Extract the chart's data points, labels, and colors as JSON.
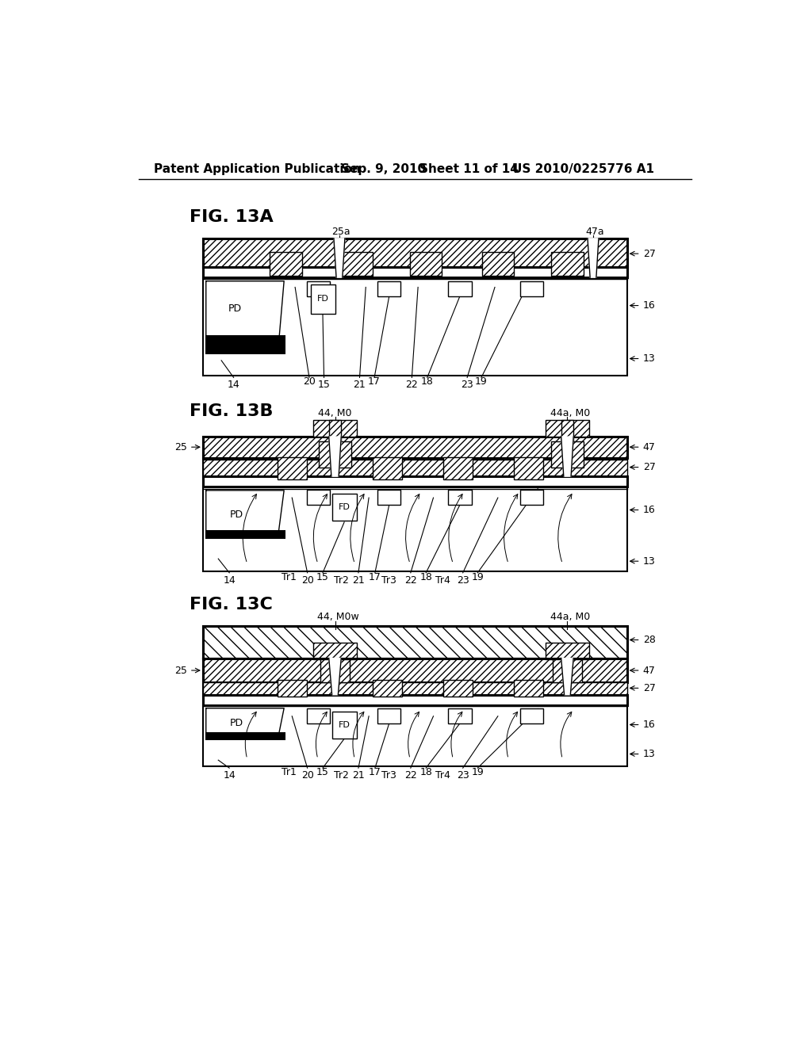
{
  "bg_color": "#ffffff",
  "header_left": "Patent Application Publication",
  "header_mid1": "Sep. 9, 2010",
  "header_mid2": "Sheet 11 of 14",
  "header_right": "US 2010/0225776 A1",
  "lw": 1.0,
  "lw_thick": 2.2,
  "lw_border": 1.5
}
